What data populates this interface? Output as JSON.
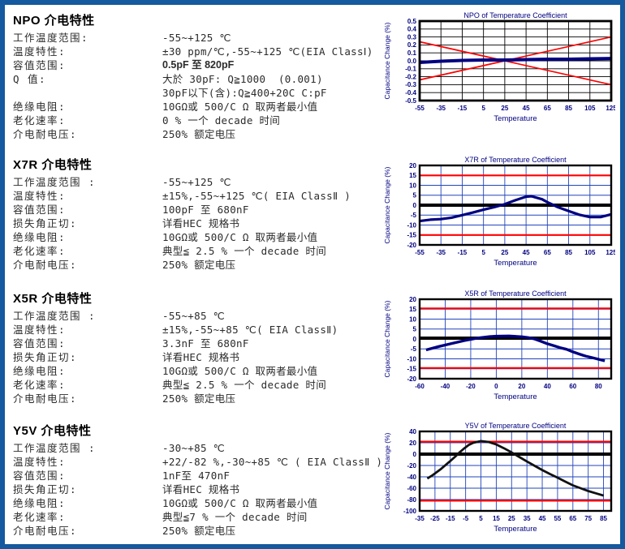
{
  "page": {
    "border_color": "#15599e",
    "background": "#ffffff",
    "chart_label_color": "#000080",
    "accent_red": "#ff0000",
    "curve_navy": "#000080"
  },
  "sections": [
    {
      "id": "npo",
      "title": "NPO 介电特性",
      "rows": [
        {
          "label": "工作温度范围:",
          "value": "-55~+125 ℃"
        },
        {
          "label": "温度特性:",
          "value": "±30 ppm/℃,-55~+125 ℃(EIA ClassⅠ)"
        },
        {
          "label": "容值范围:",
          "value": "0.5pF 至 820pF",
          "style": "sans"
        },
        {
          "label": "Q 值:",
          "value": "大於 30pF: Q≧1000  (0.001)"
        },
        {
          "label": "",
          "value": "30pF以下(含):Q≧400+20C C:pF"
        },
        {
          "label": "绝缘电阻:",
          "value": "10GΩ或 500/C Ω 取两者最小值"
        },
        {
          "label": "老化速率:",
          "value": "0 % 一个 decade 时间"
        },
        {
          "label": "介电耐电压:",
          "value": "250% 额定电压"
        }
      ],
      "chart_index": 0
    },
    {
      "id": "x7r",
      "title": "X7R 介电特性",
      "rows": [
        {
          "label": "工作温度范围 :",
          "value": "-55~+125 ℃"
        },
        {
          "label": "温度特性:",
          "value": "±15%,-55~+125 ℃( EIA ClassⅡ )"
        },
        {
          "label": "容值范围:",
          "value": "100pF 至 680nF"
        },
        {
          "label": "损失角正切:",
          "value": "详看HEC 规格书"
        },
        {
          "label": "绝缘电阻:",
          "value": "10GΩ或 500/C Ω 取两者最小值"
        },
        {
          "label": "老化速率:",
          "value": "典型≦ 2.5 % 一个 decade 时间"
        },
        {
          "label": "介电耐电压:",
          "value": "250% 额定电压"
        }
      ],
      "chart_index": 1
    },
    {
      "id": "x5r",
      "title": "X5R 介电特性",
      "rows": [
        {
          "label": "工作温度范围 :",
          "value": "-55~+85 ℃"
        },
        {
          "label": "温度特性:",
          "value": "±15%,-55~+85 ℃( EIA ClassⅡ)"
        },
        {
          "label": "容值范围:",
          "value": "3.3nF 至 680nF"
        },
        {
          "label": "损失角正切:",
          "value": "详看HEC 规格书"
        },
        {
          "label": "绝缘电阻:",
          "value": "10GΩ或 500/C Ω 取两者最小值"
        },
        {
          "label": "老化速率:",
          "value": "典型≦ 2.5 % 一个 decade 时间"
        },
        {
          "label": "介电耐电压:",
          "value": "250% 额定电压"
        }
      ],
      "chart_index": 2
    },
    {
      "id": "y5v",
      "title": "Y5V 介电特性",
      "rows": [
        {
          "label": "工作温度范围 :",
          "value": "-30~+85 ℃"
        },
        {
          "label": "温度特性:",
          "value": "+22/-82 %,-30~+85 ℃ ( EIA ClassⅡ )"
        },
        {
          "label": "容值范围:",
          "value": "1nF至 470nF"
        },
        {
          "label": "损失角正切:",
          "value": "详看HEC 规格书"
        },
        {
          "label": "绝缘电阻:",
          "value": "10GΩ或 500/C Ω 取两者最小值"
        },
        {
          "label": "老化速率:",
          "value": "典型≦7 % 一个 decade 时间"
        },
        {
          "label": "介电耐电压:",
          "value": "250% 额定电压"
        }
      ],
      "chart_index": 3
    }
  ],
  "chart_data": [
    {
      "type": "line",
      "title": "NPO of  Temperature Coefficient",
      "xlabel": "Temperature",
      "ylabel": "Capacitance Change (%)",
      "xlim": [
        -55,
        125
      ],
      "ylim": [
        -0.5,
        0.5
      ],
      "xticks": [
        -55,
        -35,
        -15,
        5,
        25,
        45,
        65,
        85,
        105,
        125
      ],
      "yticks": [
        0.5,
        0.4,
        0.3,
        0.2,
        0.1,
        0.0,
        -0.1,
        -0.2,
        -0.3,
        -0.4,
        -0.5
      ],
      "ytick_labels": [
        "0.5",
        "0.4",
        "0.3",
        "0.2",
        "0.1",
        "0.0",
        "-0.1",
        "-0.2",
        "-0.3",
        "-0.4",
        "-0.5"
      ],
      "grid": true,
      "grid_color": "#000000",
      "frame_width": 2.8,
      "series": [
        {
          "name": "upper-tolerance-limit",
          "color": "#ff0000",
          "width": 1.7,
          "points": [
            [
              -55,
              0.24
            ],
            [
              25,
              0.0
            ],
            [
              125,
              -0.3
            ]
          ]
        },
        {
          "name": "lower-tolerance-limit",
          "color": "#ff0000",
          "width": 1.7,
          "points": [
            [
              -55,
              -0.24
            ],
            [
              25,
              0.0
            ],
            [
              125,
              0.3
            ]
          ]
        },
        {
          "name": "typical-capacitance-change",
          "color": "#000080",
          "width": 4,
          "points": [
            [
              -55,
              -0.02
            ],
            [
              -35,
              -0.005
            ],
            [
              -15,
              0.005
            ],
            [
              5,
              0.01
            ],
            [
              25,
              0.01
            ],
            [
              45,
              0.015
            ],
            [
              65,
              0.02
            ],
            [
              85,
              0.02
            ],
            [
              105,
              0.025
            ],
            [
              125,
              0.03
            ]
          ]
        }
      ]
    },
    {
      "type": "line",
      "title": "X7R of  Temperature Coefficient",
      "xlabel": "Temperature",
      "ylabel": "Capacitance Change (%)",
      "xlim": [
        -55,
        125
      ],
      "ylim": [
        -20,
        20
      ],
      "xticks": [
        -55,
        -35,
        -15,
        5,
        25,
        45,
        65,
        85,
        105,
        125
      ],
      "yticks": [
        20,
        15,
        10,
        5,
        0,
        -5,
        -10,
        -15,
        -20
      ],
      "ytick_labels": [
        "20",
        "15",
        "10",
        "5",
        "0",
        "-5",
        "-10",
        "-15",
        "-20"
      ],
      "grid": true,
      "grid_color": "#2244bb",
      "frame_width": 2.4,
      "series": [
        {
          "name": "upper-tolerance-limit",
          "color": "#ff0000",
          "width": 2.2,
          "points": [
            [
              -55,
              15
            ],
            [
              125,
              15
            ]
          ]
        },
        {
          "name": "lower-tolerance-limit",
          "color": "#ff0000",
          "width": 2.2,
          "points": [
            [
              -55,
              -15
            ],
            [
              125,
              -15
            ]
          ]
        },
        {
          "name": "zero-reference",
          "color": "#000000",
          "width": 4,
          "points": [
            [
              -55,
              0
            ],
            [
              125,
              0
            ]
          ]
        },
        {
          "name": "typical-capacitance-change",
          "color": "#000080",
          "width": 3.2,
          "points": [
            [
              -55,
              -8
            ],
            [
              -45,
              -7.3
            ],
            [
              -35,
              -7
            ],
            [
              -25,
              -6.3
            ],
            [
              -15,
              -5
            ],
            [
              -5,
              -3.7
            ],
            [
              5,
              -2.3
            ],
            [
              15,
              -1
            ],
            [
              25,
              0.5
            ],
            [
              35,
              2.5
            ],
            [
              45,
              4.3
            ],
            [
              50,
              4.5
            ],
            [
              60,
              3
            ],
            [
              65,
              1.5
            ],
            [
              75,
              -1
            ],
            [
              85,
              -3
            ],
            [
              95,
              -4.8
            ],
            [
              105,
              -6
            ],
            [
              115,
              -6
            ],
            [
              125,
              -4.6
            ]
          ]
        }
      ]
    },
    {
      "type": "line",
      "title": "X5R of  Temperature Coefficient",
      "xlabel": "Temperature",
      "ylabel": "Capacitance Change (%)",
      "xlim": [
        -60,
        90
      ],
      "ylim": [
        -20,
        20
      ],
      "xticks": [
        -60,
        -40,
        -20,
        0,
        20,
        40,
        60,
        80
      ],
      "yticks": [
        20,
        15,
        10,
        5,
        0,
        -5,
        -10,
        -15,
        -20
      ],
      "ytick_labels": [
        "20",
        "15",
        "10",
        "5",
        "0",
        "-5",
        "-10",
        "-15",
        "-20"
      ],
      "grid": true,
      "grid_color": "#2244bb",
      "frame_width": 2.4,
      "series": [
        {
          "name": "upper-tolerance-limit",
          "color": "#ff0000",
          "width": 2.2,
          "points": [
            [
              -60,
              15.4
            ],
            [
              90,
              15.4
            ]
          ]
        },
        {
          "name": "lower-tolerance-limit",
          "color": "#ff0000",
          "width": 2.2,
          "points": [
            [
              -60,
              -14.6
            ],
            [
              90,
              -14.6
            ]
          ]
        },
        {
          "name": "zero-reference",
          "color": "#000000",
          "width": 4,
          "points": [
            [
              -60,
              0.4
            ],
            [
              90,
              0.4
            ]
          ]
        },
        {
          "name": "typical-capacitance-change",
          "color": "#000080",
          "width": 3.4,
          "points": [
            [
              -55,
              -5.5
            ],
            [
              -45,
              -3.8
            ],
            [
              -35,
              -2.3
            ],
            [
              -25,
              -0.8
            ],
            [
              -15,
              0.4
            ],
            [
              -5,
              1.2
            ],
            [
              0,
              1.4
            ],
            [
              10,
              1.5
            ],
            [
              20,
              1.1
            ],
            [
              25,
              0.7
            ],
            [
              30,
              0
            ],
            [
              35,
              -1.2
            ],
            [
              40,
              -2.4
            ],
            [
              45,
              -3.4
            ],
            [
              50,
              -4.4
            ],
            [
              55,
              -5.2
            ],
            [
              60,
              -6.5
            ],
            [
              65,
              -7.6
            ],
            [
              70,
              -8.6
            ],
            [
              75,
              -9.4
            ],
            [
              80,
              -10.2
            ],
            [
              85,
              -11
            ]
          ]
        }
      ]
    },
    {
      "type": "line",
      "title": "Y5V of  Temperature Coefficient",
      "xlabel": "Temperature",
      "ylabel": "Capacitance Change (%)",
      "xlim": [
        -35,
        90
      ],
      "ylim": [
        -100,
        40
      ],
      "xticks": [
        -35,
        -25,
        -15,
        -5,
        5,
        15,
        25,
        35,
        45,
        55,
        65,
        75,
        85
      ],
      "yticks": [
        40,
        20,
        0,
        -20,
        -40,
        -60,
        -80,
        -100
      ],
      "ytick_labels": [
        "40",
        "20",
        "0",
        "-20",
        "-40",
        "-60",
        "-80",
        "-100"
      ],
      "grid": true,
      "grid_color": "#2244bb",
      "frame_width": 2.4,
      "series": [
        {
          "name": "upper-tolerance-limit",
          "color": "#ff0000",
          "width": 2.2,
          "points": [
            [
              -35,
              22
            ],
            [
              90,
              22
            ]
          ]
        },
        {
          "name": "lower-tolerance-limit",
          "color": "#ff0000",
          "width": 2.2,
          "points": [
            [
              -35,
              -82
            ],
            [
              90,
              -82
            ]
          ]
        },
        {
          "name": "zero-reference",
          "color": "#000000",
          "width": 4,
          "points": [
            [
              -35,
              0
            ],
            [
              90,
              0
            ]
          ]
        },
        {
          "name": "typical-capacitance-change",
          "color": "#111111",
          "width": 2.8,
          "points": [
            [
              -30,
              -43
            ],
            [
              -27,
              -38
            ],
            [
              -24,
              -32
            ],
            [
              -21,
              -26
            ],
            [
              -18,
              -19
            ],
            [
              -15,
              -12
            ],
            [
              -12,
              -5
            ],
            [
              -9,
              3
            ],
            [
              -6,
              10
            ],
            [
              -3,
              16
            ],
            [
              0,
              20
            ],
            [
              5,
              23
            ],
            [
              10,
              21.5
            ],
            [
              15,
              17
            ],
            [
              20,
              10.5
            ],
            [
              25,
              3
            ],
            [
              30,
              -5
            ],
            [
              35,
              -13
            ],
            [
              40,
              -20.5
            ],
            [
              45,
              -28
            ],
            [
              50,
              -35
            ],
            [
              55,
              -41.5
            ],
            [
              60,
              -48.5
            ],
            [
              65,
              -55
            ],
            [
              70,
              -60
            ],
            [
              75,
              -65
            ],
            [
              80,
              -69
            ],
            [
              85,
              -73
            ]
          ]
        }
      ]
    }
  ]
}
